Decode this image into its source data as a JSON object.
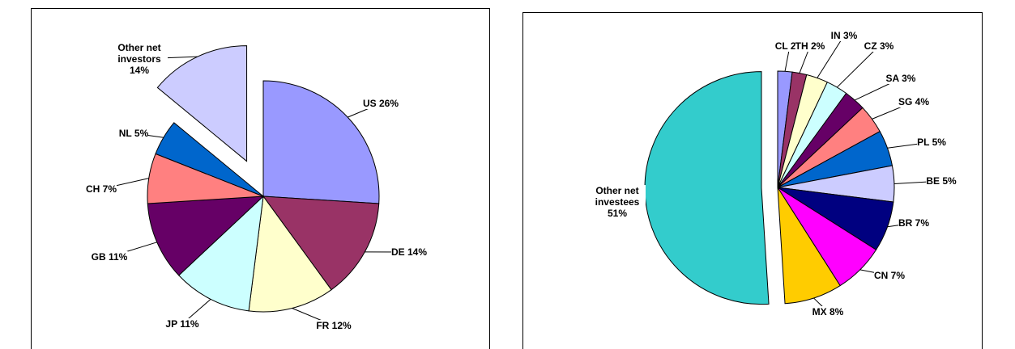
{
  "chart_data": [
    {
      "type": "pie",
      "categories": [
        "US",
        "DE",
        "FR",
        "JP",
        "GB",
        "CH",
        "NL",
        "Other net investors"
      ],
      "values": [
        26,
        14,
        12,
        11,
        11,
        7,
        5,
        14
      ],
      "value_labels": [
        "26%",
        "14%",
        "12%",
        "11%",
        "11%",
        "7%",
        "5%",
        "14%"
      ],
      "colors": [
        "#9999ff",
        "#993366",
        "#ffffcc",
        "#ccffff",
        "#660066",
        "#ff8080",
        "#0066cc",
        "#ccccff"
      ]
    },
    {
      "type": "pie",
      "categories": [
        "CL",
        "TH",
        "IN",
        "CZ",
        "SA",
        "SG",
        "PL",
        "BE",
        "BR",
        "CN",
        "MX",
        "Other net investees"
      ],
      "values": [
        2,
        2,
        3,
        3,
        3,
        4,
        5,
        5,
        7,
        7,
        8,
        51
      ],
      "value_labels": [
        "2%",
        "2%",
        "3%",
        "3%",
        "3%",
        "4%",
        "5%",
        "5%",
        "7%",
        "7%",
        "8%",
        "51%"
      ],
      "colors": [
        "#9999ff",
        "#993366",
        "#ffffcc",
        "#ccffff",
        "#660066",
        "#ff8080",
        "#0066cc",
        "#ccccff",
        "#000080",
        "#ff00ff",
        "#ffcc00",
        "#33cccc"
      ]
    }
  ]
}
